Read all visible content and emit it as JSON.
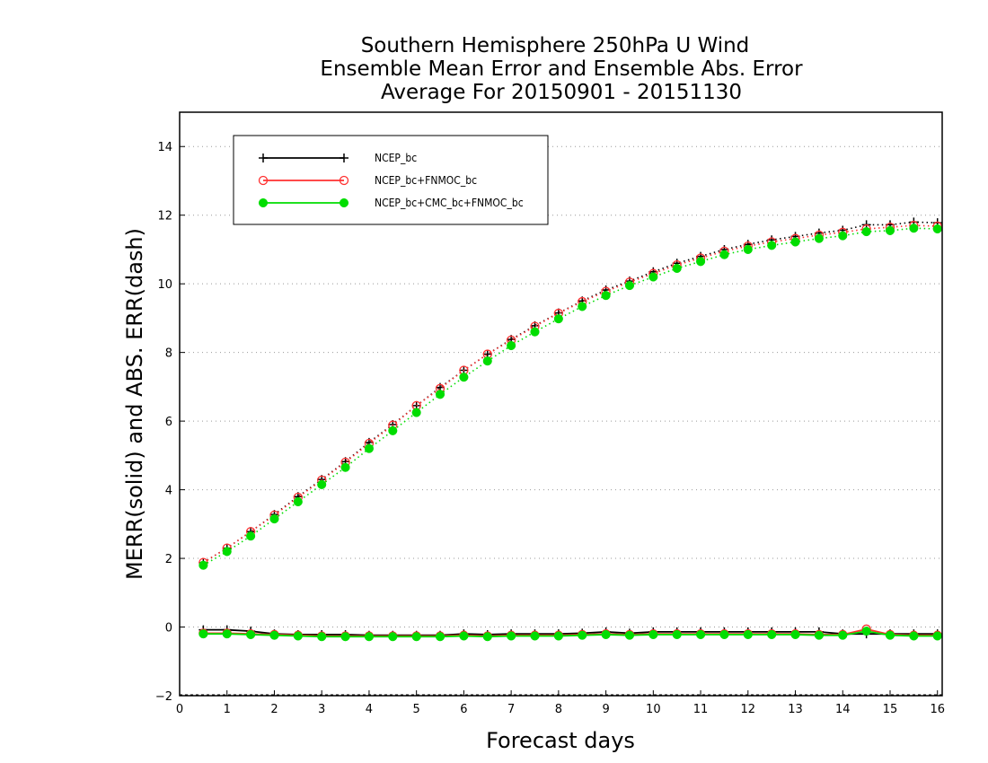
{
  "chart_data": {
    "type": "line",
    "title": [
      "Southern Hemisphere 250hPa U Wind",
      "Ensemble Mean Error and Ensemble Abs. Error",
      "Average For 20150901 - 20151130"
    ],
    "xlabel": "Forecast days",
    "ylabel": "MERR(solid) and ABS. ERR(dash)",
    "xlim": [
      0,
      16.1
    ],
    "ylim": [
      -2,
      15
    ],
    "x_ticks": [
      0,
      1,
      2,
      3,
      4,
      5,
      6,
      7,
      8,
      9,
      10,
      11,
      12,
      13,
      14,
      15,
      16
    ],
    "y_ticks": [
      -2,
      0,
      2,
      4,
      6,
      8,
      10,
      12,
      14
    ],
    "grid": "horizontal dotted",
    "legend_position": "top-left",
    "x": [
      0.5,
      1,
      1.5,
      2,
      2.5,
      3,
      3.5,
      4,
      4.5,
      5,
      5.5,
      6,
      6.5,
      7,
      7.5,
      8,
      8.5,
      9,
      9.5,
      10,
      10.5,
      11,
      11.5,
      12,
      12.5,
      13,
      13.5,
      14,
      14.5,
      15,
      15.5,
      16
    ],
    "series": [
      {
        "name": "NCEP_bc",
        "color": "#000000",
        "marker": "plus",
        "abs_err": [
          1.88,
          2.3,
          2.78,
          3.28,
          3.8,
          4.3,
          4.82,
          5.38,
          5.9,
          6.45,
          6.98,
          7.48,
          7.95,
          8.38,
          8.78,
          9.15,
          9.5,
          9.82,
          10.08,
          10.35,
          10.6,
          10.8,
          11.0,
          11.15,
          11.28,
          11.38,
          11.48,
          11.56,
          11.72,
          11.72,
          11.8,
          11.78
        ],
        "mean_err": [
          -0.08,
          -0.08,
          -0.12,
          -0.2,
          -0.22,
          -0.22,
          -0.22,
          -0.24,
          -0.24,
          -0.24,
          -0.24,
          -0.2,
          -0.22,
          -0.2,
          -0.2,
          -0.2,
          -0.18,
          -0.14,
          -0.18,
          -0.14,
          -0.14,
          -0.14,
          -0.14,
          -0.14,
          -0.14,
          -0.14,
          -0.14,
          -0.2,
          -0.2,
          -0.2,
          -0.2,
          -0.2
        ]
      },
      {
        "name": "NCEP_bc+FNMOC_bc",
        "color": "#ff3030",
        "marker": "open-circle",
        "abs_err": [
          1.88,
          2.3,
          2.78,
          3.26,
          3.78,
          4.28,
          4.8,
          5.35,
          5.88,
          6.45,
          6.95,
          7.48,
          7.95,
          8.36,
          8.76,
          9.14,
          9.48,
          9.78,
          10.05,
          10.3,
          10.55,
          10.75,
          10.95,
          11.1,
          11.22,
          11.32,
          11.42,
          11.5,
          11.6,
          11.65,
          11.7,
          11.68
        ],
        "mean_err": [
          -0.18,
          -0.18,
          -0.2,
          -0.22,
          -0.24,
          -0.26,
          -0.26,
          -0.26,
          -0.26,
          -0.26,
          -0.26,
          -0.24,
          -0.26,
          -0.24,
          -0.24,
          -0.24,
          -0.22,
          -0.2,
          -0.22,
          -0.2,
          -0.2,
          -0.2,
          -0.2,
          -0.2,
          -0.2,
          -0.2,
          -0.22,
          -0.22,
          -0.06,
          -0.22,
          -0.24,
          -0.24
        ]
      },
      {
        "name": "NCEP_bc+CMC_bc+FNMOC_bc",
        "color": "#00dd00",
        "marker": "filled-circle",
        "abs_err": [
          1.8,
          2.2,
          2.65,
          3.15,
          3.65,
          4.15,
          4.65,
          5.2,
          5.72,
          6.25,
          6.78,
          7.28,
          7.75,
          8.2,
          8.6,
          8.98,
          9.34,
          9.66,
          9.95,
          10.2,
          10.45,
          10.65,
          10.85,
          11.0,
          11.12,
          11.22,
          11.32,
          11.4,
          11.52,
          11.55,
          11.62,
          11.6
        ],
        "mean_err": [
          -0.2,
          -0.2,
          -0.22,
          -0.24,
          -0.26,
          -0.28,
          -0.28,
          -0.28,
          -0.28,
          -0.28,
          -0.28,
          -0.26,
          -0.28,
          -0.26,
          -0.26,
          -0.26,
          -0.24,
          -0.22,
          -0.24,
          -0.22,
          -0.22,
          -0.22,
          -0.22,
          -0.22,
          -0.22,
          -0.22,
          -0.24,
          -0.24,
          -0.12,
          -0.24,
          -0.26,
          -0.26
        ]
      }
    ]
  }
}
